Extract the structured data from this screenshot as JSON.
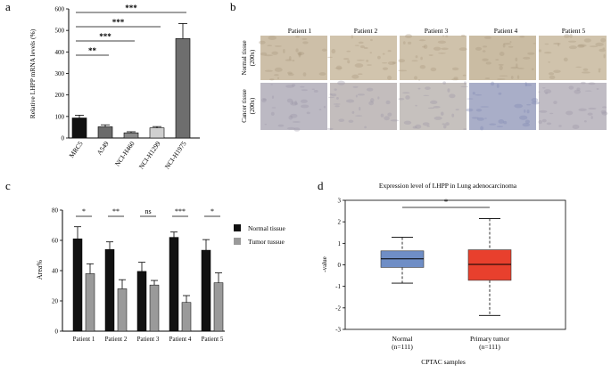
{
  "panels": {
    "a": {
      "label": "a"
    },
    "b": {
      "label": "b",
      "columns": [
        "Patient 1",
        "Patient 2",
        "Patient 3",
        "Patient 4",
        "Patient 5"
      ],
      "rows": [
        {
          "line1": "Normal tissue",
          "line2": "(200x)"
        },
        {
          "line1": "Cancer tissue",
          "line2": "(200x)"
        }
      ]
    },
    "c": {
      "label": "c"
    },
    "d": {
      "label": "d"
    }
  },
  "colors": {
    "tissue_normal": "#cdbfa8",
    "tissue_cancer": "#b8b6c2",
    "bar_dark": "#111111",
    "bar_gray": "#9a9a9a",
    "box_normal": "#6f8ec6",
    "box_tumor": "#e8402d"
  },
  "chart_data": [
    {
      "id": "a",
      "type": "bar",
      "categories": [
        "MRC5",
        "A549",
        "NCI-H460",
        "NCI-H1299",
        "NCI-H1975"
      ],
      "values": [
        93,
        52,
        24,
        47,
        462
      ],
      "errors": [
        13,
        9,
        5,
        6,
        70
      ],
      "bar_colors": [
        "#111111",
        "#6b6b6b",
        "#8a8a8a",
        "#cfcfcf",
        "#6e6e6e"
      ],
      "ylabel": "Relative LHPP mRNA levels (%)",
      "ylim": [
        0,
        600
      ],
      "yticks": [
        "0",
        "100",
        "200",
        "300",
        "400",
        "500",
        "600"
      ],
      "significance": [
        {
          "from": "MRC5",
          "to": "A549",
          "label": "**"
        },
        {
          "from": "MRC5",
          "to": "NCI-H460",
          "label": "***"
        },
        {
          "from": "MRC5",
          "to": "NCI-H1299",
          "label": "***"
        },
        {
          "from": "MRC5",
          "to": "NCI-H1975",
          "label": "***"
        }
      ]
    },
    {
      "id": "c",
      "type": "bar",
      "categories": [
        "Patient 1",
        "Patient 2",
        "Patient 3",
        "Patient 4",
        "Patient 5"
      ],
      "series": [
        {
          "name": "Normal tissue",
          "values": [
            61,
            54,
            39.5,
            62,
            53.5
          ],
          "errors": [
            8,
            5,
            6,
            3.5,
            7
          ]
        },
        {
          "name": "Tumor tussue",
          "values": [
            38,
            28,
            30.5,
            19,
            32
          ],
          "errors": [
            6.5,
            6,
            3,
            4.5,
            6.5
          ]
        }
      ],
      "ylabel": "Area%",
      "ylim": [
        0,
        80
      ],
      "yticks": [
        "0",
        "20",
        "40",
        "60",
        "80"
      ],
      "significance": [
        "*",
        "**",
        "ns",
        "***",
        "*"
      ]
    },
    {
      "id": "d",
      "type": "box",
      "title": "Expression level of LHPP in Lung adenocarcinoma",
      "xlabel": "CPTAC samples",
      "ylabel": "-value",
      "ylim": [
        -3,
        3
      ],
      "yticks": [
        "-3",
        "-2",
        "-1",
        "0",
        "1",
        "2",
        "3"
      ],
      "groups": [
        {
          "name": "Normal",
          "n": "(n=111)",
          "min": -0.85,
          "q1": -0.12,
          "median": 0.28,
          "q3": 0.65,
          "max": 1.28
        },
        {
          "name": "Primary tumor",
          "n": "(n=111)",
          "min": -2.35,
          "q1": -0.72,
          "median": 0.02,
          "q3": 0.7,
          "max": 2.15
        }
      ],
      "significance": "*"
    }
  ]
}
